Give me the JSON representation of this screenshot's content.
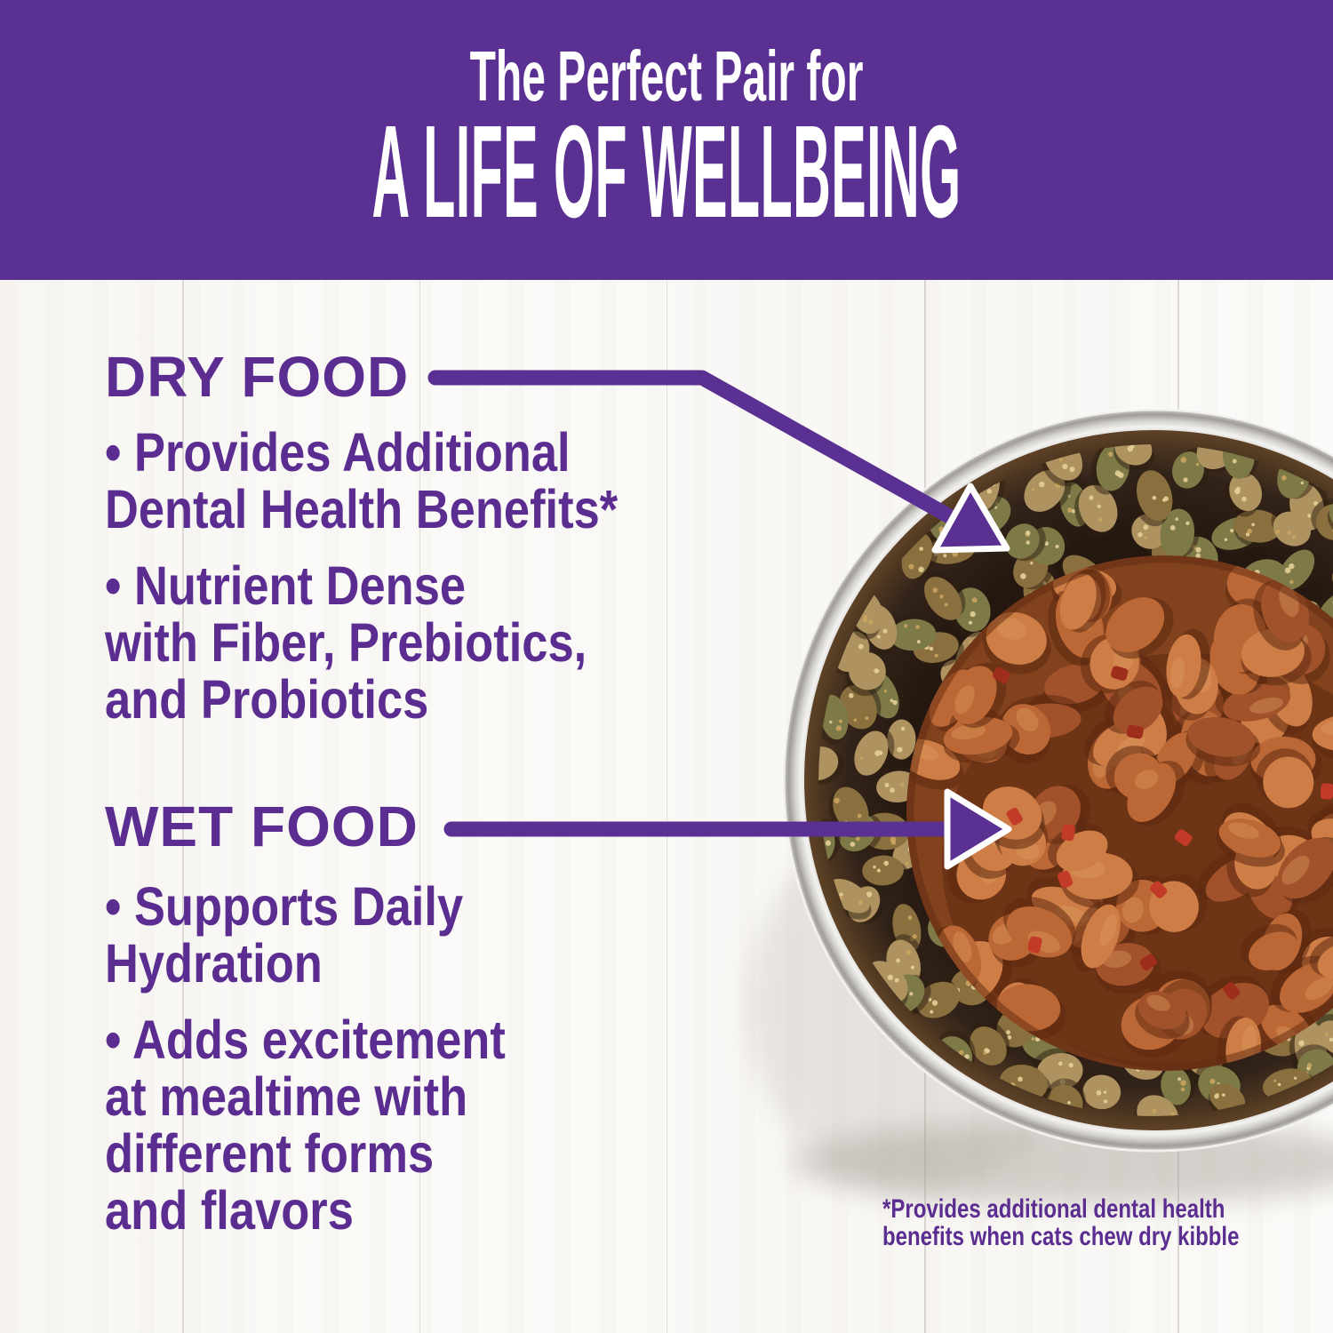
{
  "header": {
    "eyebrow": "The Perfect Pair for",
    "title": "A LIFE OF WELLBEING"
  },
  "dry_food": {
    "heading": "DRY FOOD",
    "bullet_lines": [
      "• Provides Additional",
      "Dental Health Benefits*",
      "• Nutrient Dense",
      "with Fiber, Prebiotics,",
      "and Probiotics"
    ]
  },
  "wet_food": {
    "heading": "WET FOOD",
    "bullet_lines": [
      "• Supports Daily",
      "Hydration",
      "• Adds excitement",
      "at mealtime with",
      "different forms",
      "and flavors"
    ]
  },
  "footnote": {
    "lines": [
      "*Provides additional dental health",
      "benefits when cats chew dry kibble"
    ]
  },
  "icons": {
    "dry_arrow": "arrow-diagonal-down-right",
    "wet_arrow": "arrow-right"
  },
  "colors": {
    "header_background": "#5a3192",
    "header_text": "#ffffff",
    "body_text_purple": "#5c2d91",
    "arrow_purple": "#5a3192",
    "arrow_outline": "#ffffff",
    "background": "#fbfaf8",
    "plank_line": "#a8a296",
    "steel_light": "#f3f2f0",
    "steel_mid": "#d4d2ce",
    "steel_dark": "#a09d99",
    "bowl_wall_dark": "#241710",
    "bowl_wall_brown": "#5e4227",
    "kibble_tan": "#ae9260",
    "kibble_dark": "#8a6f3f",
    "kibble_olive": "#7d7a48",
    "kibble_speck": "#e3cf96",
    "kibble_speck_alt": "#caa45f",
    "kibble_shadow": "#2b1d10",
    "gravy": "#82421e",
    "gravy_dark": "#5f2a10",
    "chunk_light": "#cd7d45",
    "chunk_mid": "#bc6836",
    "chunk_dark": "#a2522a",
    "chunk_highlight": "#dd9a5f",
    "red_bit": "#c23b28",
    "red_bit_dark": "#9e2d1c",
    "bowl_shadow": "#a59e95"
  }
}
